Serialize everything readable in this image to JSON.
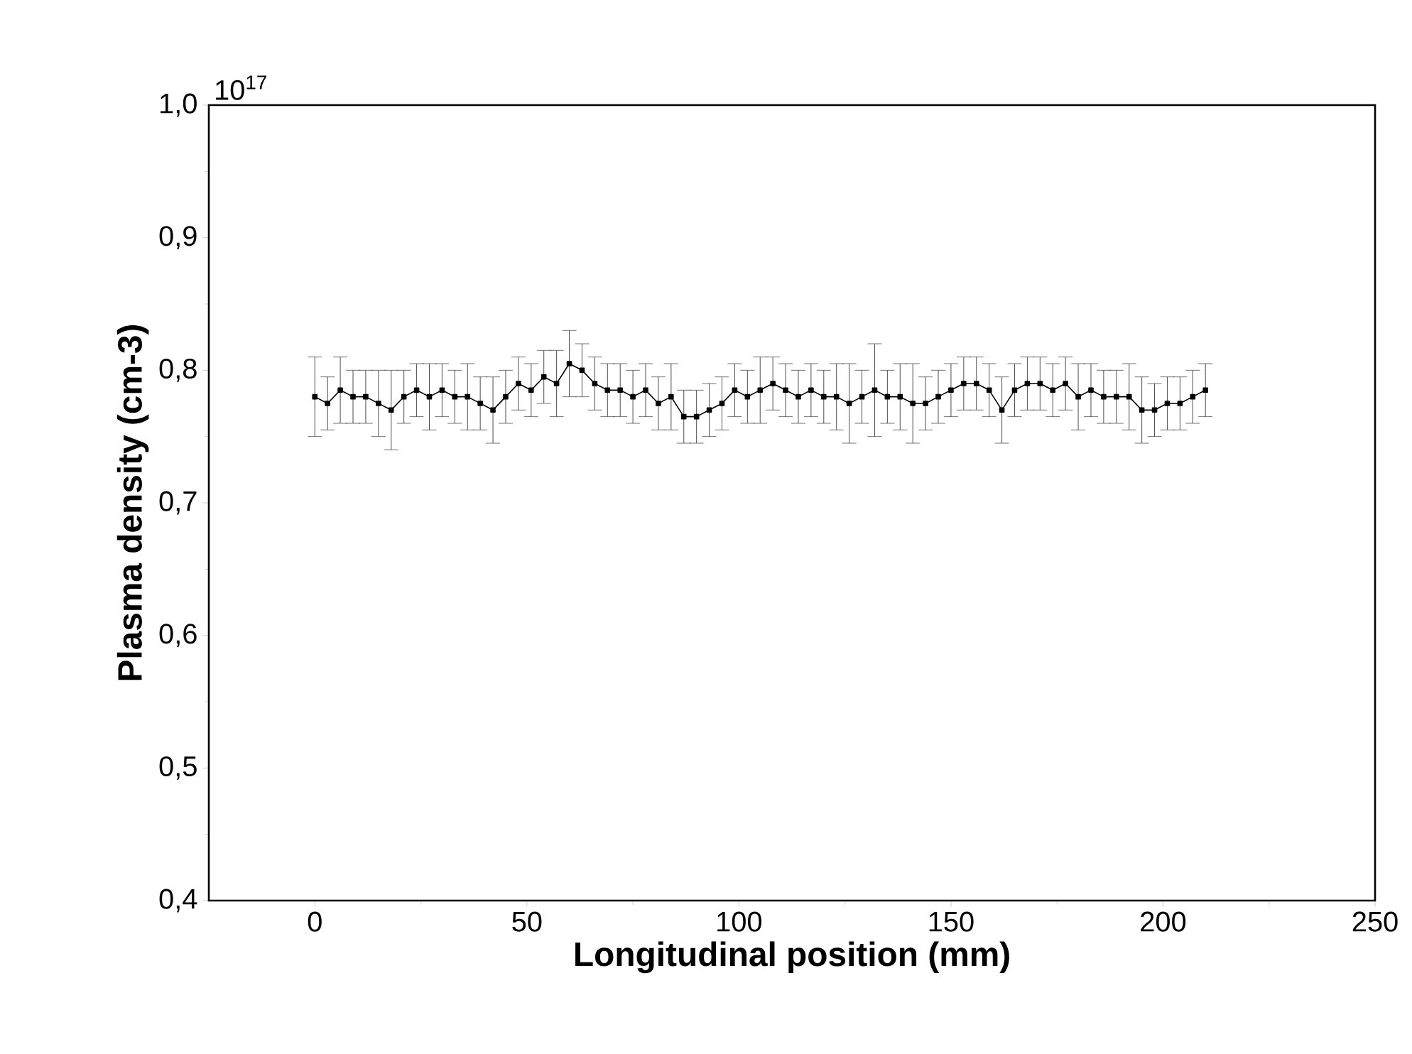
{
  "chart_data": {
    "type": "line",
    "xlabel": "Longitudinal position (mm)",
    "ylabel": "Plasma density (cm-3)",
    "annotations": [
      "10$^{17}$"
    ],
    "xlim": [
      -25,
      250
    ],
    "ylim": [
      0.4,
      1.0
    ],
    "xticks": [
      0,
      50,
      100,
      150,
      200,
      250
    ],
    "yticks": [
      {
        "value": 0.4,
        "label": "0,4"
      },
      {
        "value": 0.5,
        "label": "0,5"
      },
      {
        "value": 0.6,
        "label": "0,6"
      },
      {
        "value": 0.7,
        "label": "0,7"
      },
      {
        "value": 0.8,
        "label": "0,8"
      },
      {
        "value": 0.9,
        "label": "0,9"
      },
      {
        "value": 1.0,
        "label": "1,0"
      }
    ],
    "marker": "square",
    "series": [
      {
        "color": "#000000",
        "x": [
          0,
          3,
          6,
          9,
          12,
          15,
          18,
          21,
          24,
          27,
          30,
          33,
          36,
          39,
          42,
          45,
          48,
          51,
          54,
          57,
          60,
          63,
          66,
          69,
          72,
          75,
          78,
          81,
          84,
          87,
          90,
          93,
          96,
          99,
          102,
          105,
          108,
          111,
          114,
          117,
          120,
          123,
          126,
          129,
          132,
          135,
          138,
          141,
          144,
          147,
          150,
          153,
          156,
          159,
          162,
          165,
          168,
          171,
          174,
          177,
          180,
          183,
          186,
          189,
          192,
          195,
          198,
          201,
          204,
          207,
          210
        ],
        "values": [
          0.78,
          0.775,
          0.785,
          0.78,
          0.78,
          0.775,
          0.77,
          0.78,
          0.785,
          0.78,
          0.785,
          0.78,
          0.78,
          0.775,
          0.77,
          0.78,
          0.79,
          0.785,
          0.795,
          0.79,
          0.805,
          0.8,
          0.79,
          0.785,
          0.785,
          0.78,
          0.785,
          0.775,
          0.78,
          0.765,
          0.765,
          0.77,
          0.775,
          0.785,
          0.78,
          0.785,
          0.79,
          0.785,
          0.78,
          0.785,
          0.78,
          0.78,
          0.775,
          0.78,
          0.785,
          0.78,
          0.78,
          0.775,
          0.775,
          0.78,
          0.785,
          0.79,
          0.79,
          0.785,
          0.77,
          0.785,
          0.79,
          0.79,
          0.785,
          0.79,
          0.78,
          0.785,
          0.78,
          0.78,
          0.78,
          0.77,
          0.77,
          0.775,
          0.775,
          0.78,
          0.785
        ],
        "errors": [
          0.03,
          0.02,
          0.025,
          0.02,
          0.02,
          0.025,
          0.03,
          0.02,
          0.02,
          0.025,
          0.02,
          0.02,
          0.025,
          0.02,
          0.025,
          0.02,
          0.02,
          0.02,
          0.02,
          0.025,
          0.025,
          0.02,
          0.02,
          0.02,
          0.02,
          0.02,
          0.02,
          0.02,
          0.025,
          0.02,
          0.02,
          0.02,
          0.02,
          0.02,
          0.02,
          0.025,
          0.02,
          0.02,
          0.02,
          0.02,
          0.02,
          0.025,
          0.03,
          0.02,
          0.035,
          0.02,
          0.025,
          0.03,
          0.02,
          0.02,
          0.02,
          0.02,
          0.02,
          0.02,
          0.025,
          0.02,
          0.02,
          0.02,
          0.02,
          0.02,
          0.025,
          0.02,
          0.02,
          0.02,
          0.025,
          0.025,
          0.02,
          0.02,
          0.02,
          0.02,
          0.02
        ]
      }
    ]
  }
}
